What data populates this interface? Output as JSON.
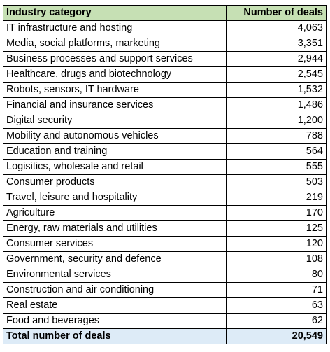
{
  "table": {
    "header": [
      "Industry category",
      "Number of deals"
    ],
    "rows": [
      [
        "IT infrastructure and hosting",
        "4,063"
      ],
      [
        "Media, social platforms, marketing",
        "3,351"
      ],
      [
        "Business processes and support services",
        "2,944"
      ],
      [
        "Healthcare, drugs and biotechnology",
        "2,545"
      ],
      [
        "Robots, sensors, IT hardware",
        "1,532"
      ],
      [
        "Financial and insurance services",
        "1,486"
      ],
      [
        "Digital security",
        "1,200"
      ],
      [
        "Mobility and autonomous vehicles",
        "788"
      ],
      [
        "Education and training",
        "564"
      ],
      [
        "Logisitics, wholesale and retail",
        "555"
      ],
      [
        "Consumer products",
        "503"
      ],
      [
        "Travel, leisure and hospitality",
        "219"
      ],
      [
        "Agriculture",
        "170"
      ],
      [
        "Energy, raw materials and utilities",
        "125"
      ],
      [
        "Consumer services",
        "120"
      ],
      [
        "Government, security and defence",
        "108"
      ],
      [
        "Environmental services",
        "80"
      ],
      [
        "Construction and air conditioning",
        "71"
      ],
      [
        "Real estate",
        "63"
      ],
      [
        "Food and beverages",
        "62"
      ]
    ],
    "total": [
      "Total number of deals",
      "20,549"
    ]
  }
}
